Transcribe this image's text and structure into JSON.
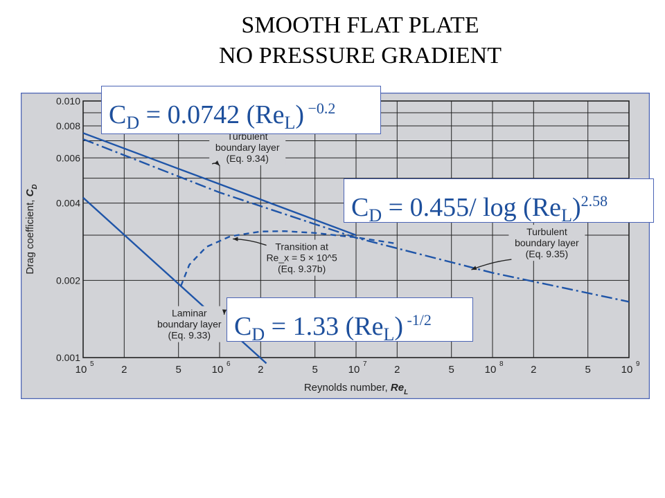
{
  "title": {
    "line1": "SMOOTH FLAT PLATE",
    "line2": "NO PRESSURE GRADIENT"
  },
  "equations": {
    "turbulent_power": {
      "c": "C",
      "sub": "D",
      "mid": " = 0.0742 (Re",
      "sub2": "L",
      "close": ")",
      "exp": " −0.2"
    },
    "turbulent_log": {
      "c": "C",
      "sub": "D",
      "mid": " = 0.455/ log (Re",
      "sub2": "L",
      "close": ")",
      "exp": "2.58"
    },
    "laminar": {
      "c": "C",
      "sub": "D",
      "mid": " = 1.33 (Re",
      "sub2": "L",
      "close": ")",
      "exp": " -1/2"
    }
  },
  "chart_data": {
    "type": "line",
    "x_scale": "log",
    "y_scale": "log",
    "xlim": [
      100000,
      1000000000
    ],
    "ylim": [
      0.001,
      0.01
    ],
    "xlabel": "Reynolds number, Re_L",
    "ylabel": "Drag coefficient, C_D",
    "xlabel_parts": {
      "text": "Reynolds number, ",
      "var": "Re",
      "sub": "L"
    },
    "ylabel_parts": {
      "text": "Drag coefficient, ",
      "var": "C",
      "sub": "D"
    },
    "grid": true,
    "x_ticks": [
      {
        "v": 100000,
        "base": "10",
        "exp": "5"
      },
      {
        "v": 200000,
        "label": "2"
      },
      {
        "v": 500000,
        "label": "5"
      },
      {
        "v": 1000000,
        "base": "10",
        "exp": "6"
      },
      {
        "v": 2000000,
        "label": "2"
      },
      {
        "v": 5000000,
        "label": "5"
      },
      {
        "v": 10000000,
        "base": "10",
        "exp": "7"
      },
      {
        "v": 20000000,
        "label": "2"
      },
      {
        "v": 50000000,
        "label": "5"
      },
      {
        "v": 100000000,
        "base": "10",
        "exp": "8"
      },
      {
        "v": 200000000,
        "label": "2"
      },
      {
        "v": 500000000,
        "label": "5"
      },
      {
        "v": 1000000000,
        "base": "10",
        "exp": "9"
      }
    ],
    "y_ticks": [
      {
        "v": 0.001,
        "label": "0.001"
      },
      {
        "v": 0.002,
        "label": "0.002"
      },
      {
        "v": 0.004,
        "label": "0.004"
      },
      {
        "v": 0.006,
        "label": "0.006"
      },
      {
        "v": 0.008,
        "label": "0.008"
      },
      {
        "v": 0.01,
        "label": "0.010"
      }
    ],
    "y_minor_grid": [
      0.003,
      0.005,
      0.007,
      0.009
    ],
    "series": [
      {
        "style": "solid",
        "x": [
          100000,
          2200000
        ],
        "y": [
          0.0042,
          0.00095
        ]
      },
      {
        "style": "solid",
        "x": [
          100000,
          10000000
        ],
        "y": [
          0.0075,
          0.003
        ]
      },
      {
        "style": "dashdot",
        "x": [
          100000,
          1000000,
          10000000,
          100000000,
          1000000000
        ],
        "y": [
          0.0071,
          0.0044,
          0.00293,
          0.00214,
          0.00165
        ]
      },
      {
        "style": "dashed",
        "x": [
          520000,
          600000,
          800000,
          1200000,
          2000000,
          3000000,
          5000000,
          7000000,
          10000000,
          20000000
        ],
        "y": [
          0.0019,
          0.0023,
          0.0027,
          0.00297,
          0.0031,
          0.00311,
          0.00306,
          0.003,
          0.00294,
          0.00278
        ]
      }
    ],
    "annotations": [
      {
        "lines": [
          "Turbulent",
          "boundary layer",
          "(Eq. 9.34)"
        ],
        "at": [
          1600000,
          0.0066
        ],
        "arrow_to": [
          1000000,
          0.0056
        ]
      },
      {
        "lines": [
          "Transition at",
          "Re_x = 5 × 10^5",
          "(Eq. 9.37b)"
        ],
        "at": [
          4000000,
          0.00245
        ],
        "arrow_to": [
          1250000,
          0.0029
        ]
      },
      {
        "lines": [
          "Turbulent",
          "boundary layer",
          "(Eq. 9.35)"
        ],
        "at": [
          250000000,
          0.0028
        ],
        "arrow_to": [
          70000000,
          0.0022
        ]
      },
      {
        "lines": [
          "Laminar",
          "boundary layer",
          "(Eq. 9.33)"
        ],
        "at": [
          600000,
          0.00135
        ],
        "arrow_to": [
          1080000,
          0.00147
        ]
      }
    ]
  }
}
